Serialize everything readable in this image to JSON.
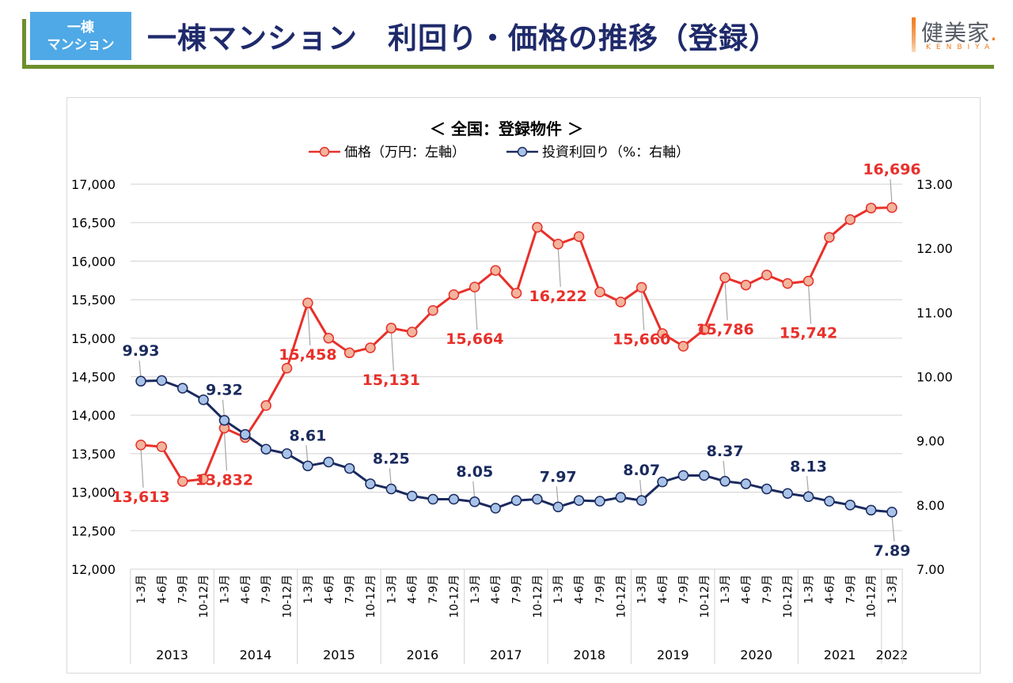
{
  "header": {
    "badge_line1": "一棟",
    "badge_line2": "マンション",
    "title": "一棟マンション　利回り・価格の推移（登録）",
    "logo_text": "健美家",
    "logo_dot": ".",
    "logo_sub": "KENBIYA"
  },
  "colors": {
    "price": "#e8302a",
    "price_marker": "#f2b49c",
    "yield": "#1a2a5e",
    "yield_marker": "#a9c3e8",
    "accent_green": "#6e8f2c",
    "badge_blue": "#4fa9e6",
    "title_navy": "#1f2a6b",
    "logo_orange": "#f07a1a"
  },
  "chart_data": {
    "type": "line",
    "title": "＜ 全国：登録物件 ＞",
    "legend_position": "top",
    "grid": true,
    "x": [
      "1-3月",
      "4-6月",
      "7-9月",
      "10-12月",
      "1-3月",
      "4-6月",
      "7-9月",
      "10-12月",
      "1-3月",
      "4-6月",
      "7-9月",
      "10-12月",
      "1-3月",
      "4-6月",
      "7-9月",
      "10-12月",
      "1-3月",
      "4-6月",
      "7-9月",
      "10-12月",
      "1-3月",
      "4-6月",
      "7-9月",
      "10-12月",
      "1-3月",
      "4-6月",
      "7-9月",
      "10-12月",
      "1-3月",
      "4-6月",
      "7-9月",
      "10-12月",
      "1-3月",
      "4-6月",
      "7-9月",
      "10-12月",
      "1-3月"
    ],
    "year_groups": [
      {
        "label": "2013",
        "count": 4
      },
      {
        "label": "2014",
        "count": 4
      },
      {
        "label": "2015",
        "count": 4
      },
      {
        "label": "2016",
        "count": 4
      },
      {
        "label": "2017",
        "count": 4
      },
      {
        "label": "2018",
        "count": 4
      },
      {
        "label": "2019",
        "count": 4
      },
      {
        "label": "2020",
        "count": 4
      },
      {
        "label": "2021",
        "count": 4
      },
      {
        "label": "2022",
        "count": 1
      }
    ],
    "left_axis": {
      "label": "価格（万円）",
      "range": [
        12000,
        17000
      ],
      "ticks": [
        "12,000",
        "12,500",
        "13,000",
        "13,500",
        "14,000",
        "14,500",
        "15,000",
        "15,500",
        "16,000",
        "16,500",
        "17,000"
      ]
    },
    "right_axis": {
      "label": "投資利回り（%）",
      "range": [
        7.0,
        13.0
      ],
      "ticks": [
        "7.00",
        "8.00",
        "9.00",
        "10.00",
        "11.00",
        "12.00",
        "13.00"
      ]
    },
    "series": [
      {
        "name": "価格（万円：左軸）",
        "axis": "left",
        "values": [
          13613,
          13590,
          13140,
          13170,
          13832,
          13710,
          14125,
          14610,
          15458,
          15000,
          14810,
          14875,
          15131,
          15080,
          15360,
          15565,
          15664,
          15880,
          15585,
          16440,
          16222,
          16320,
          15600,
          15470,
          15660,
          15060,
          14895,
          15110,
          15786,
          15690,
          15820,
          15710,
          15742,
          16310,
          16540,
          16690,
          16696
        ],
        "labels": [
          {
            "index": 0,
            "text": "13,613",
            "pos": "below"
          },
          {
            "index": 4,
            "text": "13,832",
            "pos": "below"
          },
          {
            "index": 8,
            "text": "15,458",
            "pos": "below"
          },
          {
            "index": 12,
            "text": "15,131",
            "pos": "below"
          },
          {
            "index": 16,
            "text": "15,664",
            "pos": "below"
          },
          {
            "index": 20,
            "text": "16,222",
            "pos": "below"
          },
          {
            "index": 24,
            "text": "15,660",
            "pos": "below"
          },
          {
            "index": 28,
            "text": "15,786",
            "pos": "below"
          },
          {
            "index": 32,
            "text": "15,742",
            "pos": "below"
          },
          {
            "index": 36,
            "text": "16,696",
            "pos": "above"
          }
        ]
      },
      {
        "name": "投資利回り（%：右軸）",
        "axis": "right",
        "values": [
          9.93,
          9.94,
          9.82,
          9.64,
          9.32,
          9.1,
          8.87,
          8.8,
          8.61,
          8.67,
          8.57,
          8.33,
          8.25,
          8.14,
          8.09,
          8.09,
          8.05,
          7.95,
          8.07,
          8.09,
          7.97,
          8.07,
          8.06,
          8.12,
          8.07,
          8.36,
          8.46,
          8.46,
          8.37,
          8.33,
          8.25,
          8.18,
          8.13,
          8.06,
          8.0,
          7.92,
          7.89
        ],
        "labels": [
          {
            "index": 0,
            "text": "9.93",
            "pos": "above"
          },
          {
            "index": 4,
            "text": "9.32",
            "pos": "above"
          },
          {
            "index": 8,
            "text": "8.61",
            "pos": "above"
          },
          {
            "index": 12,
            "text": "8.25",
            "pos": "above"
          },
          {
            "index": 16,
            "text": "8.05",
            "pos": "above"
          },
          {
            "index": 20,
            "text": "7.97",
            "pos": "above"
          },
          {
            "index": 24,
            "text": "8.07",
            "pos": "above"
          },
          {
            "index": 28,
            "text": "8.37",
            "pos": "above"
          },
          {
            "index": 32,
            "text": "8.13",
            "pos": "above"
          },
          {
            "index": 36,
            "text": "7.89",
            "pos": "below"
          }
        ]
      }
    ]
  }
}
